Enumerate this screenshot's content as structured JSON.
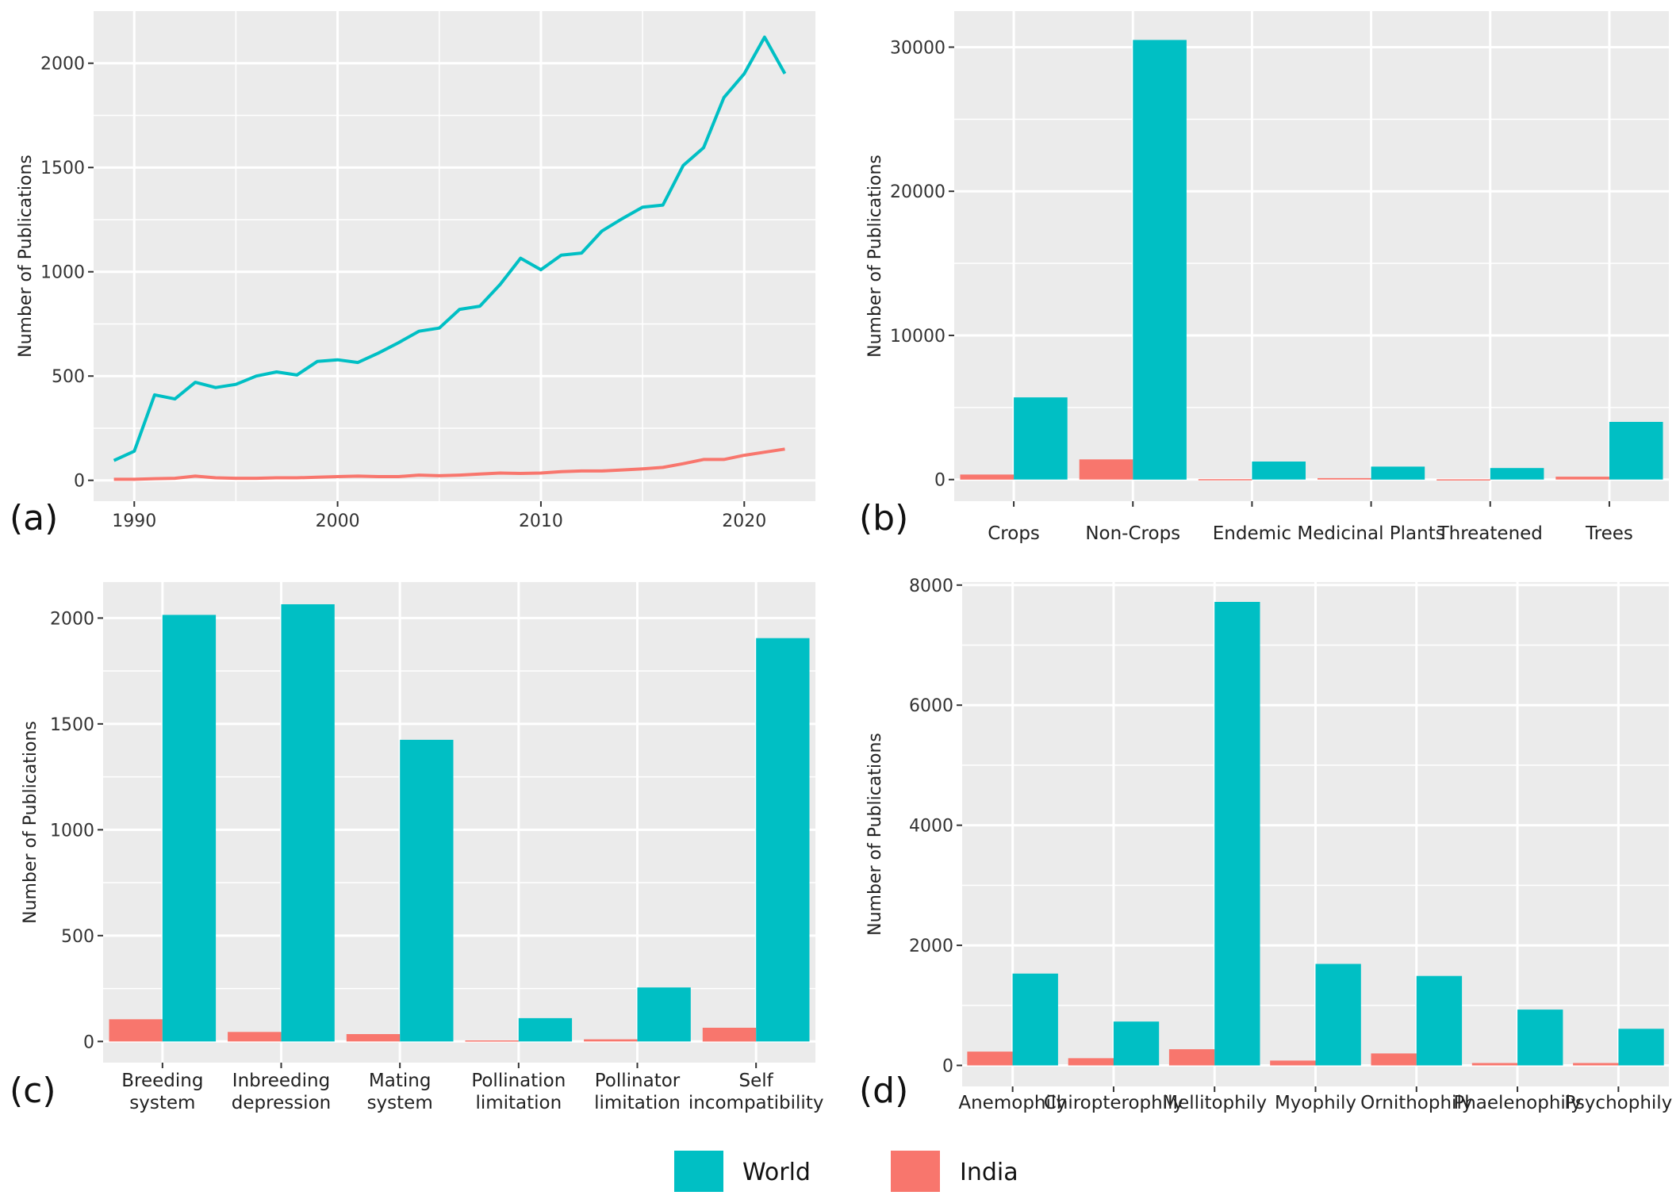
{
  "colors": {
    "world": "#00BFC4",
    "india": "#F8766D",
    "panel_bg": "#EBEBEB",
    "grid": "#FFFFFF"
  },
  "legend": {
    "world": "World",
    "india": "India"
  },
  "chart_data": [
    {
      "id": "a",
      "panel_label": "(a)",
      "type": "line",
      "ylabel": "Number of Publications",
      "xlim": [
        1988,
        2023.5
      ],
      "ylim": [
        -100,
        2250
      ],
      "x_ticks": [
        1990,
        2000,
        2010,
        2020
      ],
      "y_ticks": [
        0,
        500,
        1000,
        1500,
        2000
      ],
      "grid": true,
      "x": [
        1989,
        1990,
        1991,
        1992,
        1993,
        1994,
        1995,
        1996,
        1997,
        1998,
        1999,
        2000,
        2001,
        2002,
        2003,
        2004,
        2005,
        2006,
        2007,
        2008,
        2009,
        2010,
        2011,
        2012,
        2013,
        2014,
        2015,
        2016,
        2017,
        2018,
        2019,
        2020,
        2021,
        2022
      ],
      "series": [
        {
          "name": "World",
          "values": [
            95,
            140,
            410,
            390,
            470,
            445,
            460,
            500,
            520,
            505,
            570,
            578,
            565,
            610,
            660,
            715,
            730,
            820,
            835,
            940,
            1065,
            1010,
            1080,
            1090,
            1195,
            1255,
            1310,
            1320,
            1510,
            1595,
            1835,
            1950,
            2125,
            1950
          ]
        },
        {
          "name": "India",
          "values": [
            5,
            5,
            8,
            10,
            20,
            12,
            10,
            10,
            12,
            12,
            15,
            18,
            20,
            18,
            18,
            25,
            22,
            25,
            30,
            35,
            33,
            35,
            42,
            45,
            45,
            50,
            55,
            62,
            80,
            100,
            100,
            120,
            135,
            150
          ]
        }
      ]
    },
    {
      "id": "b",
      "panel_label": "(b)",
      "type": "bar",
      "ylabel": "Number of Publications",
      "ylim": [
        -1500,
        32500
      ],
      "y_ticks": [
        0,
        10000,
        20000,
        30000
      ],
      "grid": true,
      "categories": [
        "Crops",
        "Non-Crops",
        "Endemic",
        "Medicinal Plants",
        "Threatened",
        "Trees"
      ],
      "series": [
        {
          "name": "India",
          "values": [
            350,
            1400,
            30,
            100,
            20,
            200
          ]
        },
        {
          "name": "World",
          "values": [
            5700,
            30500,
            1250,
            900,
            800,
            4000
          ]
        }
      ]
    },
    {
      "id": "c",
      "panel_label": "(c)",
      "type": "bar",
      "ylabel": "Number of Publications",
      "ylim": [
        -100,
        2170
      ],
      "y_ticks": [
        0,
        500,
        1000,
        1500,
        2000
      ],
      "grid": true,
      "categories": [
        "Breeding\nsystem",
        "Inbreeding\ndepression",
        "Mating\nsystem",
        "Pollination\nlimitation",
        "Pollinator\nlimitation",
        "Self\nincompatibility"
      ],
      "series": [
        {
          "name": "India",
          "values": [
            105,
            45,
            35,
            5,
            10,
            65
          ]
        },
        {
          "name": "World",
          "values": [
            2015,
            2065,
            1425,
            110,
            255,
            1905
          ]
        }
      ]
    },
    {
      "id": "d",
      "panel_label": "(d)",
      "type": "bar",
      "ylabel": "Number of Publications",
      "ylim": [
        -350,
        8050
      ],
      "y_ticks": [
        0,
        2000,
        4000,
        6000,
        8000
      ],
      "grid": true,
      "categories": [
        "Anemophily",
        "Chiropterophily",
        "Mellitophily",
        "Myophily",
        "Ornithophily",
        "Phaelenophily",
        "Psychophily"
      ],
      "series": [
        {
          "name": "India",
          "values": [
            230,
            120,
            270,
            80,
            200,
            40,
            40
          ]
        },
        {
          "name": "World",
          "values": [
            1530,
            730,
            7720,
            1690,
            1490,
            930,
            610
          ]
        }
      ]
    }
  ]
}
